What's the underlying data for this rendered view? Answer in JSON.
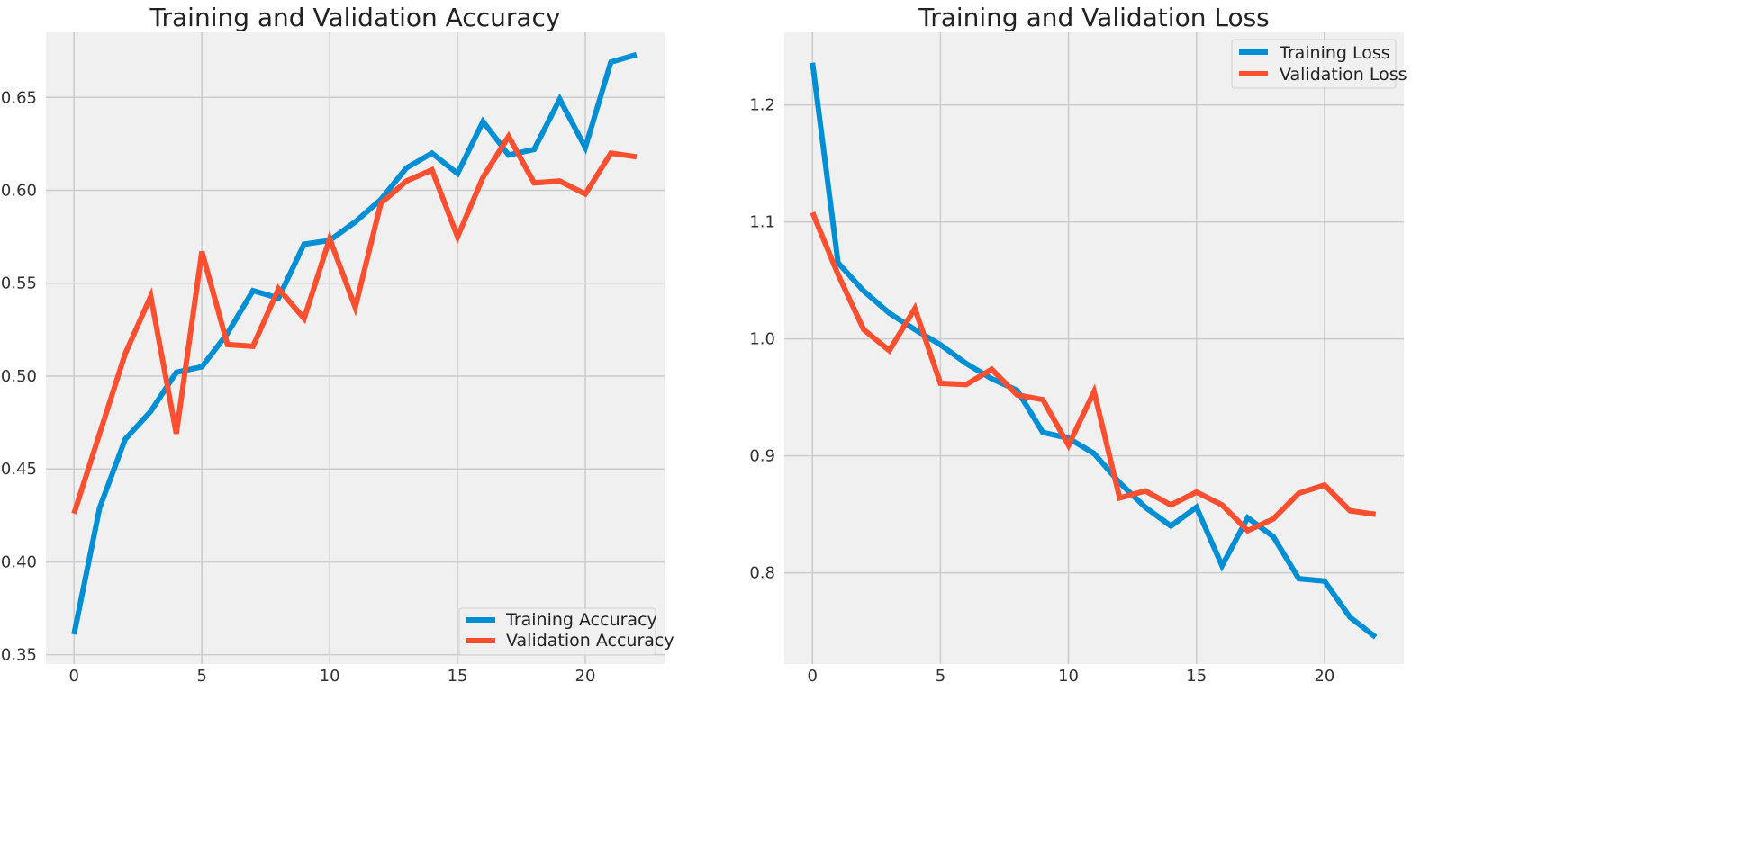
{
  "chart_data": [
    {
      "type": "line",
      "title": "Training and Validation Accuracy",
      "xlabel": "",
      "ylabel": "",
      "xlim": [
        -1.1,
        23.1
      ],
      "ylim": [
        0.345,
        0.685
      ],
      "xticks": [
        0,
        5,
        10,
        15,
        20
      ],
      "yticks": [
        0.35,
        0.4,
        0.45,
        0.5,
        0.55,
        0.6,
        0.65
      ],
      "ytick_labels": [
        "0.35",
        "0.40",
        "0.45",
        "0.50",
        "0.55",
        "0.60",
        "0.65"
      ],
      "grid": true,
      "legend_position": "lower right",
      "x": [
        0,
        1,
        2,
        3,
        4,
        5,
        6,
        7,
        8,
        9,
        10,
        11,
        12,
        13,
        14,
        15,
        16,
        17,
        18,
        19,
        20,
        21,
        22
      ],
      "series": [
        {
          "name": "Training Accuracy",
          "color": "#008fd5",
          "values": [
            0.361,
            0.429,
            0.466,
            0.481,
            0.502,
            0.505,
            0.523,
            0.546,
            0.542,
            0.571,
            0.573,
            0.583,
            0.595,
            0.612,
            0.62,
            0.609,
            0.637,
            0.619,
            0.622,
            0.649,
            0.623,
            0.669,
            0.673
          ]
        },
        {
          "name": "Validation Accuracy",
          "color": "#fc4f30",
          "values": [
            0.426,
            0.469,
            0.512,
            0.543,
            0.469,
            0.567,
            0.517,
            0.516,
            0.547,
            0.531,
            0.574,
            0.537,
            0.593,
            0.605,
            0.611,
            0.575,
            0.607,
            0.629,
            0.604,
            0.605,
            0.598,
            0.62,
            0.618
          ]
        }
      ]
    },
    {
      "type": "line",
      "title": "Training and Validation Loss",
      "xlabel": "",
      "ylabel": "",
      "xlim": [
        -1.1,
        23.1
      ],
      "ylim": [
        0.722,
        1.262
      ],
      "xticks": [
        0,
        5,
        10,
        15,
        20
      ],
      "yticks": [
        0.8,
        0.9,
        1.0,
        1.1,
        1.2
      ],
      "ytick_labels": [
        "0.8",
        "0.9",
        "1.0",
        "1.1",
        "1.2"
      ],
      "grid": true,
      "legend_position": "upper right",
      "x": [
        0,
        1,
        2,
        3,
        4,
        5,
        6,
        7,
        8,
        9,
        10,
        11,
        12,
        13,
        14,
        15,
        16,
        17,
        18,
        19,
        20,
        21,
        22
      ],
      "series": [
        {
          "name": "Training Loss",
          "color": "#008fd5",
          "values": [
            1.236,
            1.065,
            1.041,
            1.022,
            1.008,
            0.995,
            0.979,
            0.966,
            0.956,
            0.92,
            0.915,
            0.902,
            0.877,
            0.856,
            0.84,
            0.856,
            0.806,
            0.847,
            0.831,
            0.795,
            0.793,
            0.762,
            0.745
          ]
        },
        {
          "name": "Validation Loss",
          "color": "#fc4f30",
          "values": [
            1.108,
            1.055,
            1.008,
            0.99,
            1.026,
            0.962,
            0.961,
            0.974,
            0.952,
            0.948,
            0.909,
            0.955,
            0.864,
            0.87,
            0.858,
            0.869,
            0.858,
            0.836,
            0.846,
            0.868,
            0.875,
            0.853,
            0.85
          ]
        }
      ]
    }
  ]
}
